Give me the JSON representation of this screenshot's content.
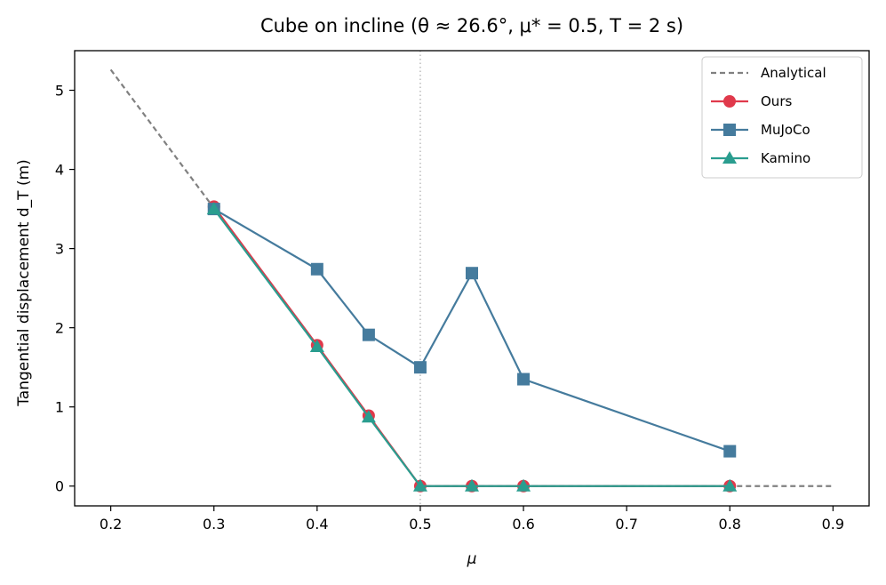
{
  "chart_data": {
    "type": "line",
    "title": "Cube on incline (θ ≈ 26.6°, μ* = 0.5, T = 2 s)",
    "xlabel": "μ",
    "ylabel": "Tangential displacement d_T (m)",
    "xlim": [
      0.165,
      0.935
    ],
    "ylim": [
      -0.25,
      5.5
    ],
    "xticks": [
      0.2,
      0.3,
      0.4,
      0.5,
      0.6,
      0.7,
      0.8,
      0.9
    ],
    "xtick_labels": [
      "0.2",
      "0.3",
      "0.4",
      "0.5",
      "0.6",
      "0.7",
      "0.8",
      "0.9"
    ],
    "yticks": [
      0,
      1,
      2,
      3,
      4,
      5
    ],
    "ytick_labels": [
      "0",
      "1",
      "2",
      "3",
      "4",
      "5"
    ],
    "grid": false,
    "legend_position": "top-right",
    "vline": {
      "x": 0.5,
      "style": "dotted",
      "color": "#b0b0b0"
    },
    "series": [
      {
        "name": "Analytical",
        "style": "dashed",
        "marker": "none",
        "color": "#808080",
        "x": [
          0.2,
          0.3,
          0.4,
          0.45,
          0.5,
          0.55,
          0.6,
          0.8,
          0.9
        ],
        "y": [
          5.26,
          3.51,
          1.76,
          0.88,
          0.0,
          0.0,
          0.0,
          0.0,
          0.0
        ]
      },
      {
        "name": "Ours",
        "style": "solid",
        "marker": "circle",
        "color": "#e0394b",
        "x": [
          0.3,
          0.4,
          0.45,
          0.5,
          0.55,
          0.6,
          0.8
        ],
        "y": [
          3.53,
          1.78,
          0.89,
          0.0,
          0.0,
          0.0,
          0.0
        ]
      },
      {
        "name": "MuJoCo",
        "style": "solid",
        "marker": "square",
        "color": "#457b9d",
        "x": [
          0.3,
          0.4,
          0.45,
          0.5,
          0.55,
          0.6,
          0.8
        ],
        "y": [
          3.5,
          2.74,
          1.91,
          1.5,
          2.69,
          1.35,
          0.44
        ]
      },
      {
        "name": "Kamino",
        "style": "solid",
        "marker": "triangle",
        "color": "#2a9d8f",
        "x": [
          0.3,
          0.4,
          0.45,
          0.5,
          0.55,
          0.6,
          0.8
        ],
        "y": [
          3.5,
          1.76,
          0.87,
          0.0,
          0.0,
          0.0,
          0.0
        ]
      }
    ]
  }
}
